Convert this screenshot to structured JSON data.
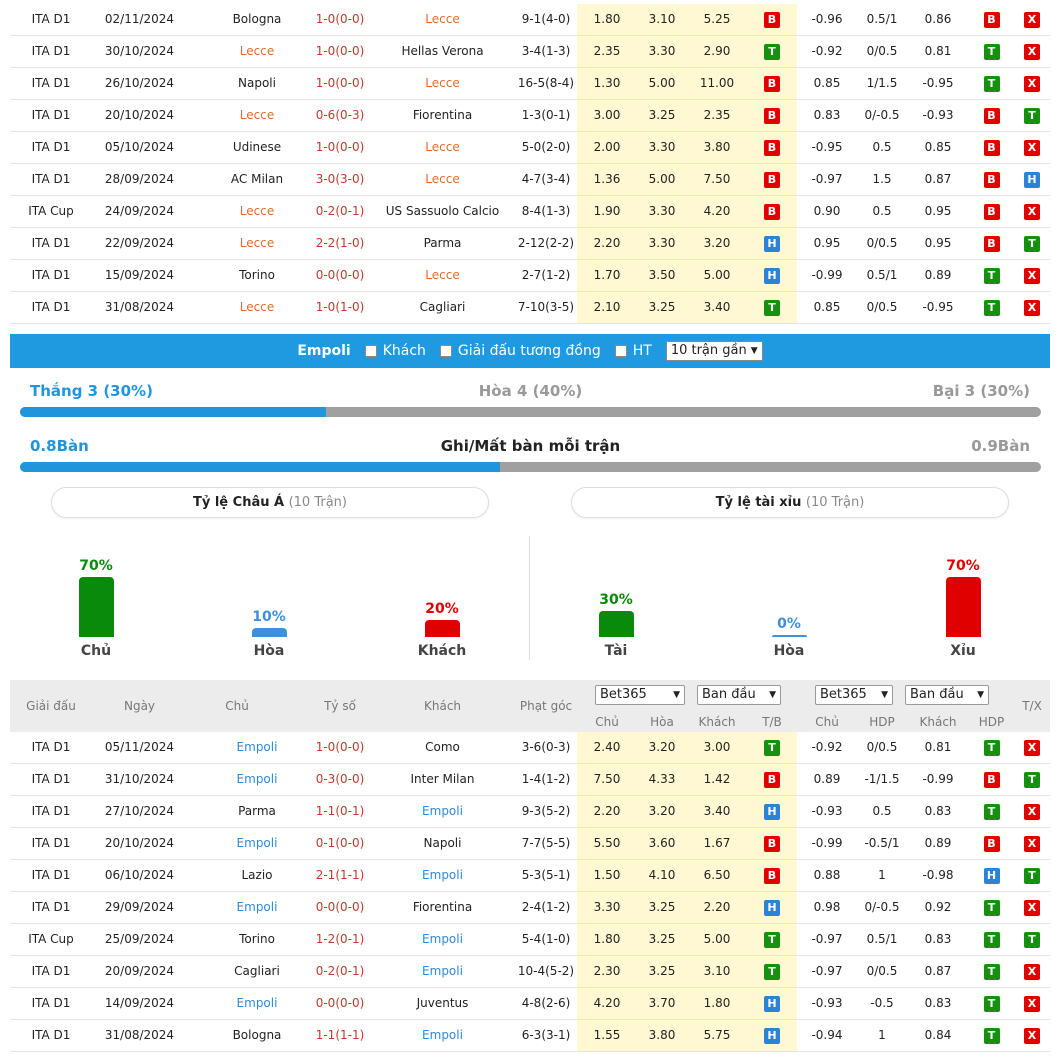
{
  "top_matches": [
    {
      "league": "ITA D1",
      "date": "02/11/2024",
      "home": "Bologna",
      "score": "1-0(0-0)",
      "away": "Lecce",
      "corner": "9-1(4-0)",
      "o1": "1.80",
      "o2": "3.10",
      "o3": "5.25",
      "tb": "B",
      "h1": "-0.96",
      "h2": "0.5/1",
      "h3": "0.86",
      "hr": "B",
      "tx": "X",
      "hl": "away"
    },
    {
      "league": "ITA D1",
      "date": "30/10/2024",
      "home": "Lecce",
      "score": "1-0(0-0)",
      "away": "Hellas Verona",
      "corner": "3-4(1-3)",
      "o1": "2.35",
      "o2": "3.30",
      "o3": "2.90",
      "tb": "T",
      "h1": "-0.92",
      "h2": "0/0.5",
      "h3": "0.81",
      "hr": "T",
      "tx": "X",
      "hl": "home"
    },
    {
      "league": "ITA D1",
      "date": "26/10/2024",
      "home": "Napoli",
      "score": "1-0(0-0)",
      "away": "Lecce",
      "corner": "16-5(8-4)",
      "o1": "1.30",
      "o2": "5.00",
      "o3": "11.00",
      "tb": "B",
      "h1": "0.85",
      "h2": "1/1.5",
      "h3": "-0.95",
      "hr": "T",
      "tx": "X",
      "hl": "away"
    },
    {
      "league": "ITA D1",
      "date": "20/10/2024",
      "home": "Lecce",
      "score": "0-6(0-3)",
      "away": "Fiorentina",
      "corner": "1-3(0-1)",
      "o1": "3.00",
      "o2": "3.25",
      "o3": "2.35",
      "tb": "B",
      "h1": "0.83",
      "h2": "0/-0.5",
      "h3": "-0.93",
      "hr": "B",
      "tx": "T",
      "hl": "home"
    },
    {
      "league": "ITA D1",
      "date": "05/10/2024",
      "home": "Udinese",
      "score": "1-0(0-0)",
      "away": "Lecce",
      "corner": "5-0(2-0)",
      "o1": "2.00",
      "o2": "3.30",
      "o3": "3.80",
      "tb": "B",
      "h1": "-0.95",
      "h2": "0.5",
      "h3": "0.85",
      "hr": "B",
      "tx": "X",
      "hl": "away"
    },
    {
      "league": "ITA D1",
      "date": "28/09/2024",
      "home": "AC Milan",
      "score": "3-0(3-0)",
      "away": "Lecce",
      "corner": "4-7(3-4)",
      "o1": "1.36",
      "o2": "5.00",
      "o3": "7.50",
      "tb": "B",
      "h1": "-0.97",
      "h2": "1.5",
      "h3": "0.87",
      "hr": "B",
      "tx": "H",
      "hl": "away"
    },
    {
      "league": "ITA Cup",
      "date": "24/09/2024",
      "home": "Lecce",
      "score": "0-2(0-1)",
      "away": "US Sassuolo Calcio",
      "corner": "8-4(1-3)",
      "o1": "1.90",
      "o2": "3.30",
      "o3": "4.20",
      "tb": "B",
      "h1": "0.90",
      "h2": "0.5",
      "h3": "0.95",
      "hr": "B",
      "tx": "X",
      "hl": "home"
    },
    {
      "league": "ITA D1",
      "date": "22/09/2024",
      "home": "Lecce",
      "score": "2-2(1-0)",
      "away": "Parma",
      "corner": "2-12(2-2)",
      "o1": "2.20",
      "o2": "3.30",
      "o3": "3.20",
      "tb": "H",
      "h1": "0.95",
      "h2": "0/0.5",
      "h3": "0.95",
      "hr": "B",
      "tx": "T",
      "hl": "home"
    },
    {
      "league": "ITA D1",
      "date": "15/09/2024",
      "home": "Torino",
      "score": "0-0(0-0)",
      "away": "Lecce",
      "corner": "2-7(1-2)",
      "o1": "1.70",
      "o2": "3.50",
      "o3": "5.00",
      "tb": "H",
      "h1": "-0.99",
      "h2": "0.5/1",
      "h3": "0.89",
      "hr": "T",
      "tx": "X",
      "hl": "away"
    },
    {
      "league": "ITA D1",
      "date": "31/08/2024",
      "home": "Lecce",
      "score": "1-0(1-0)",
      "away": "Cagliari",
      "corner": "7-10(3-5)",
      "o1": "2.10",
      "o2": "3.25",
      "o3": "3.40",
      "tb": "T",
      "h1": "0.85",
      "h2": "0/0.5",
      "h3": "-0.95",
      "hr": "T",
      "tx": "X",
      "hl": "home"
    }
  ],
  "filter": {
    "team": "Empoli",
    "opt_away": "Khách",
    "opt_same_league": "Giải đấu tương đồng",
    "opt_ht": "HT",
    "select": "10 trận gần"
  },
  "summary": {
    "win": "Thắng 3 (30%)",
    "draw": "Hòa 4 (40%)",
    "lose": "Bại 3 (30%)",
    "win_ratio": 0.3,
    "goals_for": "0.8Bàn",
    "goals_title": "Ghi/Mất bàn mỗi trận",
    "goals_against": "0.9Bàn",
    "goals_ratio": 0.47
  },
  "pill_asia": {
    "title": "Tỷ lệ Châu Á",
    "sub": "(10 Trận)"
  },
  "pill_ou": {
    "title": "Tỷ lệ tài xỉu",
    "sub": "(10 Trận)"
  },
  "asia_bars": [
    {
      "pct": "70%",
      "label": "Chủ",
      "value": 70,
      "color": "#0a8a0a"
    },
    {
      "pct": "10%",
      "label": "Hòa",
      "value": 10,
      "color": "#3f8fdc"
    },
    {
      "pct": "20%",
      "label": "Khách",
      "value": 20,
      "color": "#e00000"
    }
  ],
  "ou_bars": [
    {
      "pct": "30%",
      "label": "Tài",
      "value": 30,
      "color": "#0a8a0a"
    },
    {
      "pct": "0%",
      "label": "Hòa",
      "value": 0,
      "color": "#3f8fdc"
    },
    {
      "pct": "70%",
      "label": "Xỉu",
      "value": 70,
      "color": "#e00000"
    }
  ],
  "thead": {
    "league": "Giải đấu",
    "date": "Ngày",
    "home": "Chủ",
    "score": "Tỷ số",
    "away": "Khách",
    "corner": "Phạt góc",
    "dd1": "Bet365",
    "dd2": "Ban đầu",
    "dd3": "Bet365",
    "dd4": "Ban đầu",
    "s_home": "Chủ",
    "s_draw": "Hòa",
    "s_away": "Khách",
    "s_tb": "T/B",
    "s_h_home": "Chủ",
    "s_hdp": "HDP",
    "s_h_away": "Khách",
    "s_hdp2": "HDP",
    "tx": "T/X"
  },
  "bottom_matches": [
    {
      "league": "ITA D1",
      "date": "05/11/2024",
      "home": "Empoli",
      "score": "1-0(0-0)",
      "away": "Como",
      "corner": "3-6(0-3)",
      "o1": "2.40",
      "o2": "3.20",
      "o3": "3.00",
      "tb": "T",
      "h1": "-0.92",
      "h2": "0/0.5",
      "h3": "0.81",
      "hr": "T",
      "tx": "X",
      "hl": "home"
    },
    {
      "league": "ITA D1",
      "date": "31/10/2024",
      "home": "Empoli",
      "score": "0-3(0-0)",
      "away": "Inter Milan",
      "corner": "1-4(1-2)",
      "o1": "7.50",
      "o2": "4.33",
      "o3": "1.42",
      "tb": "B",
      "h1": "0.89",
      "h2": "-1/1.5",
      "h3": "-0.99",
      "hr": "B",
      "tx": "T",
      "hl": "home"
    },
    {
      "league": "ITA D1",
      "date": "27/10/2024",
      "home": "Parma",
      "score": "1-1(0-1)",
      "away": "Empoli",
      "corner": "9-3(5-2)",
      "o1": "2.20",
      "o2": "3.20",
      "o3": "3.40",
      "tb": "H",
      "h1": "-0.93",
      "h2": "0.5",
      "h3": "0.83",
      "hr": "T",
      "tx": "X",
      "hl": "away"
    },
    {
      "league": "ITA D1",
      "date": "20/10/2024",
      "home": "Empoli",
      "score": "0-1(0-0)",
      "away": "Napoli",
      "corner": "7-7(5-5)",
      "o1": "5.50",
      "o2": "3.60",
      "o3": "1.67",
      "tb": "B",
      "h1": "-0.99",
      "h2": "-0.5/1",
      "h3": "0.89",
      "hr": "B",
      "tx": "X",
      "hl": "home"
    },
    {
      "league": "ITA D1",
      "date": "06/10/2024",
      "home": "Lazio",
      "score": "2-1(1-1)",
      "away": "Empoli",
      "corner": "5-3(5-1)",
      "o1": "1.50",
      "o2": "4.10",
      "o3": "6.50",
      "tb": "B",
      "h1": "0.88",
      "h2": "1",
      "h3": "-0.98",
      "hr": "H",
      "tx": "T",
      "hl": "away"
    },
    {
      "league": "ITA D1",
      "date": "29/09/2024",
      "home": "Empoli",
      "score": "0-0(0-0)",
      "away": "Fiorentina",
      "corner": "2-4(1-2)",
      "o1": "3.30",
      "o2": "3.25",
      "o3": "2.20",
      "tb": "H",
      "h1": "0.98",
      "h2": "0/-0.5",
      "h3": "0.92",
      "hr": "T",
      "tx": "X",
      "hl": "home"
    },
    {
      "league": "ITA Cup",
      "date": "25/09/2024",
      "home": "Torino",
      "score": "1-2(0-1)",
      "away": "Empoli",
      "corner": "5-4(1-0)",
      "o1": "1.80",
      "o2": "3.25",
      "o3": "5.00",
      "tb": "T",
      "h1": "-0.97",
      "h2": "0.5/1",
      "h3": "0.83",
      "hr": "T",
      "tx": "T",
      "hl": "away"
    },
    {
      "league": "ITA D1",
      "date": "20/09/2024",
      "home": "Cagliari",
      "score": "0-2(0-1)",
      "away": "Empoli",
      "corner": "10-4(5-2)",
      "o1": "2.30",
      "o2": "3.25",
      "o3": "3.10",
      "tb": "T",
      "h1": "-0.97",
      "h2": "0/0.5",
      "h3": "0.87",
      "hr": "T",
      "tx": "X",
      "hl": "away"
    },
    {
      "league": "ITA D1",
      "date": "14/09/2024",
      "home": "Empoli",
      "score": "0-0(0-0)",
      "away": "Juventus",
      "corner": "4-8(2-6)",
      "o1": "4.20",
      "o2": "3.70",
      "o3": "1.80",
      "tb": "H",
      "h1": "-0.93",
      "h2": "-0.5",
      "h3": "0.83",
      "hr": "T",
      "tx": "X",
      "hl": "home"
    },
    {
      "league": "ITA D1",
      "date": "31/08/2024",
      "home": "Bologna",
      "score": "1-1(1-1)",
      "away": "Empoli",
      "corner": "6-3(3-1)",
      "o1": "1.55",
      "o2": "3.80",
      "o3": "5.75",
      "tb": "H",
      "h1": "-0.94",
      "h2": "1",
      "h3": "0.84",
      "hr": "T",
      "tx": "X",
      "hl": "away"
    }
  ],
  "colors": {
    "primary": "#1f9ae0",
    "win_bar": "#2195dc",
    "lose_bar": "#a0a0a0",
    "lecce": "#e06c2b",
    "empoli": "#2e8ad8",
    "score": "#c0392b"
  }
}
